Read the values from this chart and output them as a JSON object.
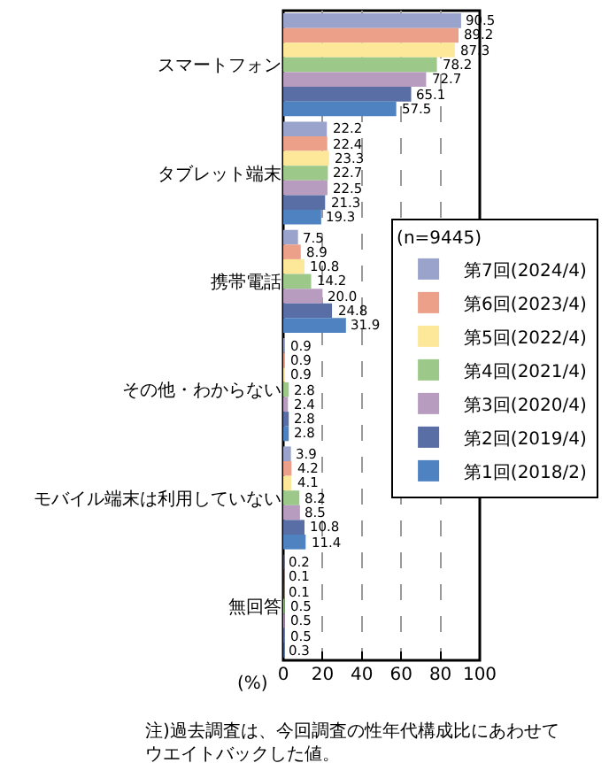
{
  "chart_data": {
    "type": "bar",
    "orientation": "horizontal",
    "categories": [
      "スマートフォン",
      "タブレット端末",
      "携帯電話",
      "その他・わからない",
      "モバイル端末は利用していない",
      "無回答"
    ],
    "series": [
      {
        "name": "第7回(2024/4)",
        "color": "#9aa3cc",
        "values": [
          90.5,
          22.2,
          7.5,
          0.9,
          3.9,
          0.2
        ]
      },
      {
        "name": "第6回(2023/4)",
        "color": "#eca08a",
        "values": [
          89.2,
          22.4,
          8.9,
          0.9,
          4.2,
          0.1
        ]
      },
      {
        "name": "第5回(2022/4)",
        "color": "#fde89a",
        "values": [
          87.3,
          23.3,
          10.8,
          0.9,
          4.1,
          0.1
        ]
      },
      {
        "name": "第4回(2021/4)",
        "color": "#9cc98a",
        "values": [
          78.2,
          22.7,
          14.2,
          2.8,
          8.2,
          0.5
        ]
      },
      {
        "name": "第3回(2020/4)",
        "color": "#b89cc0",
        "values": [
          72.7,
          22.5,
          20.0,
          2.4,
          8.5,
          0.5
        ],
        "value_labels": [
          "72.7",
          "22.5",
          "20.0",
          "2.4",
          "8.5",
          "0.5"
        ]
      },
      {
        "name": "第2回(2019/4)",
        "color": "#5a6ea6",
        "values": [
          65.1,
          21.3,
          24.8,
          2.8,
          10.8,
          0.5
        ]
      },
      {
        "name": "第1回(2018/2)",
        "color": "#4f82c0",
        "values": [
          57.5,
          19.3,
          31.9,
          2.8,
          11.4,
          0.3
        ]
      }
    ],
    "xlim": [
      0,
      100
    ],
    "xticks": [
      0,
      20,
      40,
      60,
      80,
      100
    ],
    "xlabel": "(%)",
    "legend_title": "(n=9445)",
    "legend": "right",
    "grid": "x",
    "data_labels": true,
    "annotations": [
      "注)過去調査は、今回調査の性年代構成比にあわせてウエイトバックした値。"
    ]
  }
}
